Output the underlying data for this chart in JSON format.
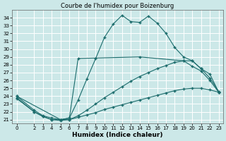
{
  "title": "Courbe de l'humidex pour Boizenburg",
  "xlabel": "Humidex (Indice chaleur)",
  "xlim": [
    -0.5,
    23.5
  ],
  "ylim": [
    20.5,
    35.0
  ],
  "yticks": [
    21,
    22,
    23,
    24,
    25,
    26,
    27,
    28,
    29,
    30,
    31,
    32,
    33,
    34
  ],
  "xticks": [
    0,
    2,
    3,
    4,
    5,
    6,
    7,
    8,
    9,
    10,
    11,
    12,
    13,
    14,
    15,
    16,
    17,
    18,
    19,
    20,
    21,
    22,
    23
  ],
  "bg_color": "#cce8e8",
  "grid_color": "#ffffff",
  "line_color": "#1a6b6b",
  "line1_x": [
    0,
    2,
    3,
    4,
    5,
    6,
    7,
    8,
    9,
    10,
    11,
    12,
    13,
    14,
    15,
    16,
    17,
    18,
    19,
    20,
    21,
    22,
    23
  ],
  "line1_y": [
    24.0,
    22.2,
    21.5,
    21.2,
    21.0,
    21.2,
    23.5,
    26.2,
    28.8,
    31.5,
    33.2,
    34.3,
    33.5,
    33.4,
    34.2,
    33.3,
    32.0,
    30.2,
    29.0,
    28.5,
    27.5,
    26.3,
    24.6
  ],
  "line2_x": [
    0,
    5,
    6,
    7,
    14,
    19,
    20,
    21,
    22,
    23
  ],
  "line2_y": [
    24.0,
    21.0,
    21.2,
    28.8,
    29.0,
    28.5,
    27.8,
    27.2,
    26.0,
    24.5
  ],
  "line3_x": [
    0,
    2,
    3,
    4,
    5,
    6,
    7,
    8,
    9,
    10,
    11,
    12,
    13,
    14,
    15,
    16,
    17,
    18,
    19,
    20,
    21,
    22,
    23
  ],
  "line3_y": [
    23.8,
    22.0,
    21.4,
    21.0,
    21.0,
    21.0,
    21.5,
    22.2,
    23.0,
    23.8,
    24.5,
    25.2,
    25.9,
    26.5,
    27.0,
    27.5,
    27.9,
    28.3,
    28.5,
    28.5,
    27.5,
    26.8,
    24.5
  ],
  "line4_x": [
    0,
    2,
    3,
    4,
    5,
    6,
    7,
    8,
    9,
    10,
    11,
    12,
    13,
    14,
    15,
    16,
    17,
    18,
    19,
    20,
    21,
    22,
    23
  ],
  "line4_y": [
    23.7,
    22.0,
    21.4,
    21.0,
    20.9,
    21.0,
    21.3,
    21.6,
    21.9,
    22.3,
    22.6,
    22.9,
    23.2,
    23.5,
    23.8,
    24.1,
    24.4,
    24.7,
    24.9,
    25.0,
    25.0,
    24.8,
    24.5
  ],
  "marker": "+",
  "markersize": 3,
  "markeredgewidth": 1.0,
  "linewidth": 0.8,
  "title_fontsize": 6,
  "tick_fontsize": 5,
  "xlabel_fontsize": 6.5
}
